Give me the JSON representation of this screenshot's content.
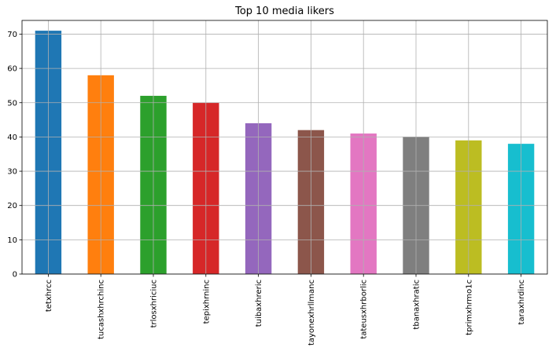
{
  "chart_data": {
    "type": "bar",
    "title": "Top 10 media likers",
    "xlabel": "",
    "ylabel": "",
    "categories": [
      "tetxhrcc",
      "tucashxhrchinc",
      "trlosxhriciuc",
      "tepixhrninc",
      "tuibaxhreric",
      "tayonexhrllmanc",
      "tateusxhrborlic",
      "tbanaxhratic",
      "tprimxhrmo1c",
      "taraxhrdinc"
    ],
    "values": [
      71,
      58,
      52,
      50,
      44,
      42,
      41,
      40,
      39,
      38
    ],
    "colors": [
      "#1f77b4",
      "#ff7f0e",
      "#2ca02c",
      "#d62728",
      "#9467bd",
      "#8c564b",
      "#e377c2",
      "#7f7f7f",
      "#bcbd22",
      "#17becf"
    ],
    "ylim": [
      0,
      74
    ],
    "yticks": [
      0,
      10,
      20,
      30,
      40,
      50,
      60,
      70
    ],
    "grid": true,
    "legend": false
  }
}
